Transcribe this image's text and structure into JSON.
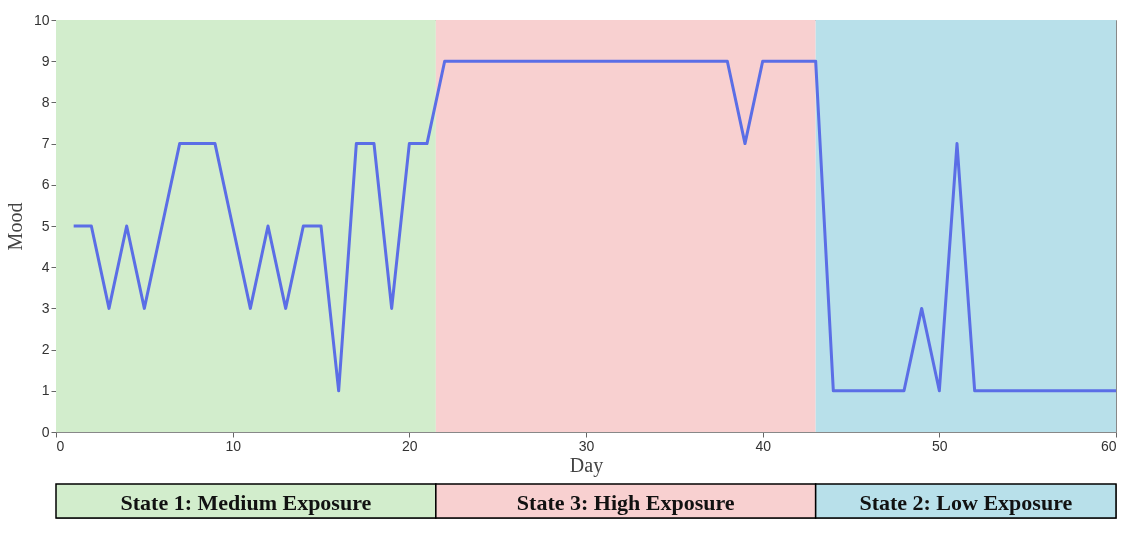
{
  "chart_data": {
    "type": "line",
    "xlabel": "Day",
    "ylabel": "Mood",
    "x": [
      1,
      2,
      3,
      4,
      5,
      6,
      7,
      8,
      9,
      10,
      11,
      12,
      13,
      14,
      15,
      16,
      17,
      18,
      19,
      20,
      21,
      22,
      23,
      24,
      25,
      26,
      27,
      28,
      29,
      30,
      31,
      32,
      33,
      34,
      35,
      36,
      37,
      38,
      39,
      40,
      41,
      42,
      43,
      44,
      45,
      46,
      47,
      48,
      49,
      50,
      51,
      52,
      53,
      54,
      55,
      56,
      57,
      58,
      59,
      60
    ],
    "series": [
      {
        "color": "#5b6ee6",
        "values": [
          5,
          5,
          3,
          5,
          3,
          5,
          7,
          7,
          7,
          5,
          3,
          5,
          3,
          5,
          5,
          1,
          7,
          7,
          3,
          7,
          7,
          9,
          9,
          9,
          9,
          9,
          9,
          9,
          9,
          9,
          9,
          9,
          9,
          9,
          9,
          9,
          9,
          9,
          7,
          9,
          9,
          9,
          9,
          1,
          1,
          1,
          1,
          1,
          3,
          1,
          7,
          1,
          1,
          1,
          1,
          1,
          1,
          1,
          1,
          1
        ]
      }
    ],
    "xlim": [
      0,
      60
    ],
    "xticks": [
      0,
      10,
      20,
      30,
      40,
      50,
      60
    ],
    "ylim": [
      0,
      10
    ],
    "yticks": [
      0,
      1,
      2,
      3,
      4,
      5,
      6,
      7,
      8,
      9,
      10
    ],
    "grid": false,
    "marker": "none",
    "line_style": "solid",
    "bands": [
      {
        "axis": "x",
        "from": 0,
        "to": 21.5,
        "label": "State 1: Medium Exposure",
        "color": "#d2edcc"
      },
      {
        "axis": "x",
        "from": 21.5,
        "to": 43,
        "label": "State 3: High Exposure",
        "color": "#f8d0d0"
      },
      {
        "axis": "x",
        "from": 43,
        "to": 60,
        "label": "State 2: Low Exposure",
        "color": "#b8e0ea"
      }
    ]
  }
}
